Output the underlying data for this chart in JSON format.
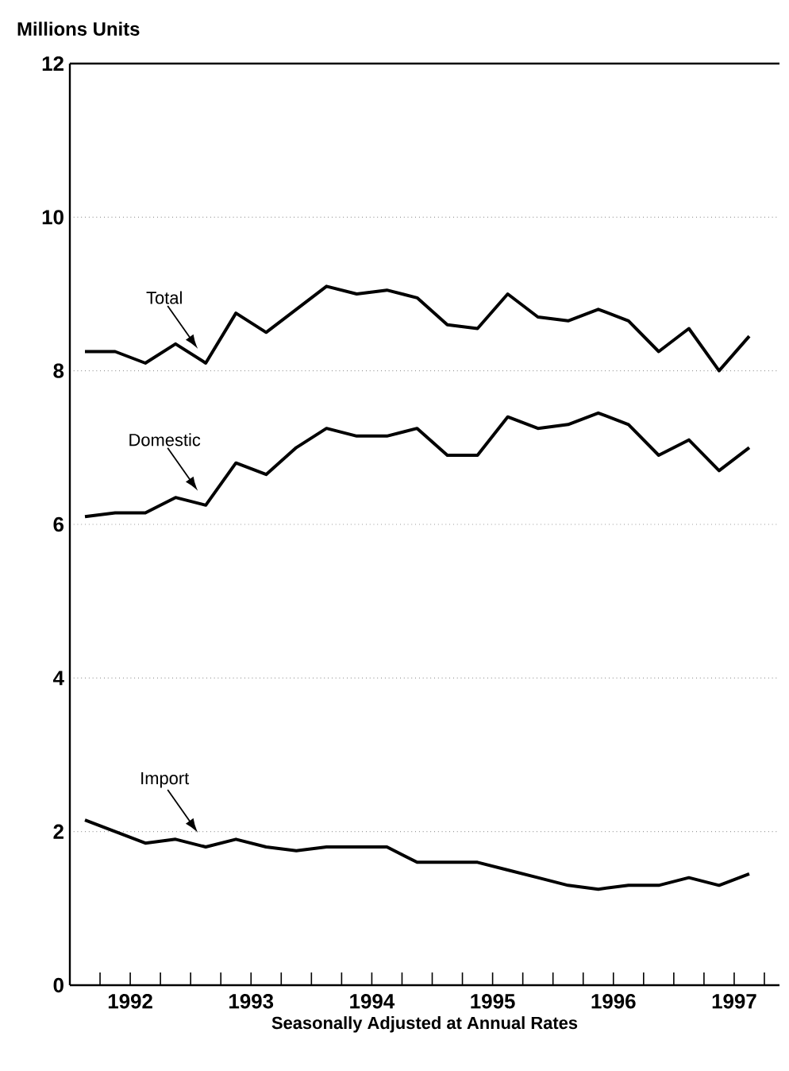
{
  "chart_data": {
    "type": "line",
    "xlabel": "Seasonally Adjusted at Annual Rates",
    "ylabel": "Millions Units",
    "x": [
      1992.125,
      1992.375,
      1992.625,
      1992.875,
      1993.125,
      1993.375,
      1993.625,
      1993.875,
      1994.125,
      1994.375,
      1994.625,
      1994.875,
      1995.125,
      1995.375,
      1995.625,
      1995.875,
      1996.125,
      1996.375,
      1996.625,
      1996.875,
      1997.125,
      1997.375,
      1997.625
    ],
    "series": [
      {
        "name": "Total",
        "color": "#000000",
        "values": [
          8.25,
          8.25,
          8.1,
          8.35,
          8.1,
          8.75,
          8.5,
          8.8,
          9.1,
          9.0,
          9.05,
          8.95,
          8.6,
          8.55,
          9.0,
          8.7,
          8.65,
          8.8,
          8.65,
          8.25,
          8.55,
          8.0,
          8.45
        ]
      },
      {
        "name": "Domestic",
        "color": "#000000",
        "values": [
          6.1,
          6.15,
          6.15,
          6.35,
          6.25,
          6.8,
          6.65,
          7.0,
          7.25,
          7.15,
          7.15,
          7.25,
          6.9,
          6.9,
          7.4,
          7.25,
          7.3,
          7.45,
          7.3,
          6.9,
          7.1,
          6.7,
          7.0
        ]
      },
      {
        "name": "Import",
        "color": "#000000",
        "values": [
          2.15,
          2.0,
          1.85,
          1.9,
          1.8,
          1.9,
          1.8,
          1.75,
          1.8,
          1.8,
          1.8,
          1.6,
          1.6,
          1.6,
          1.5,
          1.4,
          1.3,
          1.25,
          1.3,
          1.3,
          1.4,
          1.3,
          1.45
        ]
      }
    ],
    "xlim": [
      1992,
      1997.875
    ],
    "xticks": [
      {
        "value": 1992,
        "label": null
      },
      {
        "value": 1992.25,
        "label": null
      },
      {
        "value": 1992.5,
        "label": "1992"
      },
      {
        "value": 1992.75,
        "label": null
      },
      {
        "value": 1993,
        "label": null
      },
      {
        "value": 1993.25,
        "label": null
      },
      {
        "value": 1993.5,
        "label": "1993"
      },
      {
        "value": 1993.75,
        "label": null
      },
      {
        "value": 1994,
        "label": null
      },
      {
        "value": 1994.25,
        "label": null
      },
      {
        "value": 1994.5,
        "label": "1994"
      },
      {
        "value": 1994.75,
        "label": null
      },
      {
        "value": 1995,
        "label": null
      },
      {
        "value": 1995.25,
        "label": null
      },
      {
        "value": 1995.5,
        "label": "1995"
      },
      {
        "value": 1995.75,
        "label": null
      },
      {
        "value": 1996,
        "label": null
      },
      {
        "value": 1996.25,
        "label": null
      },
      {
        "value": 1996.5,
        "label": "1996"
      },
      {
        "value": 1996.75,
        "label": null
      },
      {
        "value": 1997,
        "label": null
      },
      {
        "value": 1997.25,
        "label": null
      },
      {
        "value": 1997.5,
        "label": "1997"
      },
      {
        "value": 1997.75,
        "label": null
      }
    ],
    "ylim": [
      0,
      12
    ],
    "yticks": [
      0,
      2,
      4,
      6,
      8,
      10,
      12
    ],
    "grid": "y",
    "marker": "none",
    "line_style": "solid"
  }
}
